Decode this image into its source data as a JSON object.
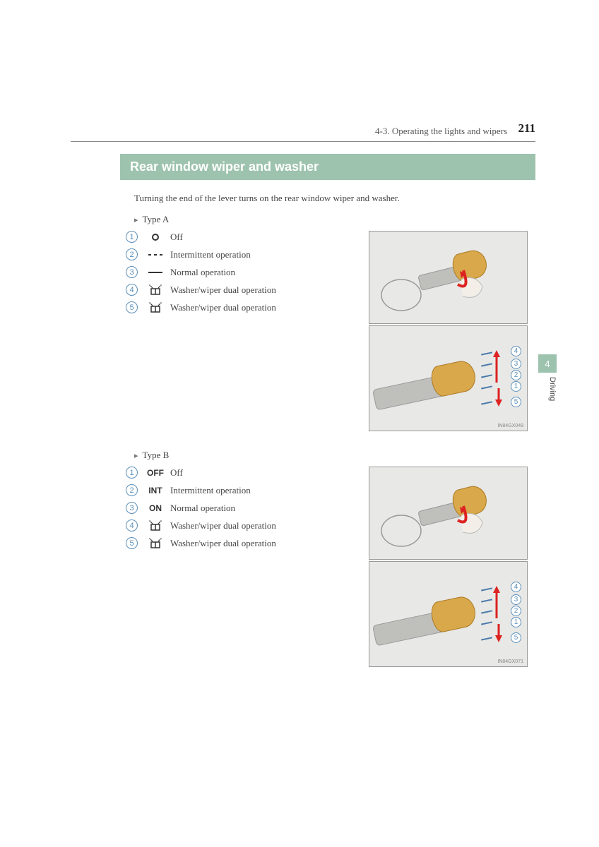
{
  "header": {
    "section_label": "4-3. Operating the lights and wipers",
    "page_number": "211",
    "chapter_tab": "4",
    "side_label": "Driving"
  },
  "title": "Rear window wiper and washer",
  "intro": "Turning the end of the lever turns on the rear window wiper and washer.",
  "typeA": {
    "label": "Type A",
    "items": [
      {
        "n": "1",
        "sym_kind": "circle",
        "text": "Off"
      },
      {
        "n": "2",
        "sym_kind": "dashes",
        "text": "Intermittent operation"
      },
      {
        "n": "3",
        "sym_kind": "line",
        "text": "Normal operation"
      },
      {
        "n": "4",
        "sym_kind": "washer",
        "text": "Washer/wiper dual operation"
      },
      {
        "n": "5",
        "sym_kind": "washer",
        "text": "Washer/wiper dual operation"
      }
    ],
    "img_ref": "IN84GX049"
  },
  "typeB": {
    "label": "Type B",
    "items": [
      {
        "n": "1",
        "sym_text": "OFF",
        "text": "Off"
      },
      {
        "n": "2",
        "sym_text": "INT",
        "text": "Intermittent operation"
      },
      {
        "n": "3",
        "sym_text": "ON",
        "text": "Normal operation"
      },
      {
        "n": "4",
        "sym_kind": "washer",
        "text": "Washer/wiper dual operation"
      },
      {
        "n": "5",
        "sym_kind": "washer",
        "text": "Washer/wiper dual operation"
      }
    ],
    "img_ref": "IN84GX071"
  },
  "colors": {
    "accent": "#9dc3ae",
    "circle": "#5b8fb8",
    "knob": "#d9a84a",
    "arrow": "#d22222"
  }
}
